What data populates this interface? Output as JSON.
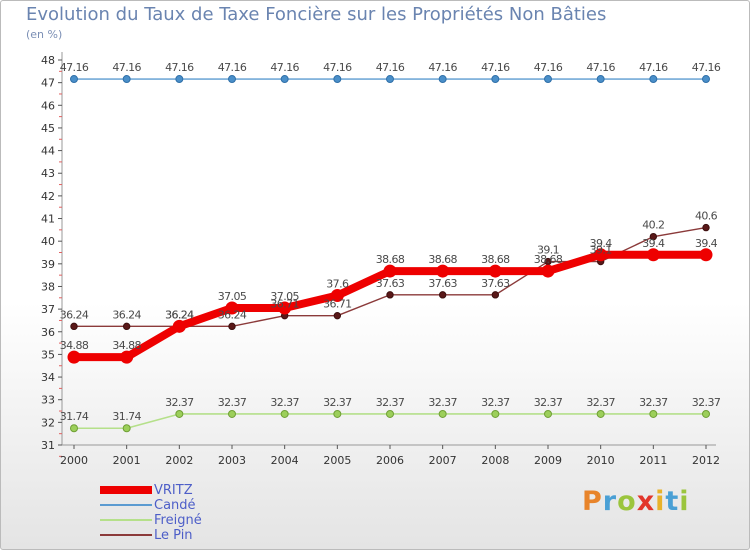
{
  "chart_data": {
    "type": "line",
    "title": "Evolution du Taux de Taxe Foncière sur les Propriétés Non Bâties",
    "subtitle": "(en %)",
    "xlabel": "",
    "ylabel": "",
    "ylim": [
      31,
      48
    ],
    "yticks": [
      31,
      32,
      33,
      34,
      35,
      36,
      37,
      38,
      39,
      40,
      41,
      42,
      43,
      44,
      45,
      46,
      47,
      48
    ],
    "grid": false,
    "x": [
      "2000",
      "2001",
      "2002",
      "2003",
      "2004",
      "2005",
      "2006",
      "2007",
      "2008",
      "2009",
      "2010",
      "2011",
      "2012"
    ],
    "series": [
      {
        "name": "VRITZ",
        "color": "#ee0000",
        "values": [
          34.88,
          34.88,
          36.24,
          37.05,
          37.05,
          37.6,
          38.68,
          38.68,
          38.68,
          38.68,
          39.4,
          39.4,
          39.4
        ],
        "labels": [
          "34.88",
          "34.88",
          "36.24",
          "37.05",
          "37.05",
          "37.6",
          "38.68",
          "38.68",
          "38.68",
          "38.68",
          "39.4",
          "39.4",
          "39.4"
        ]
      },
      {
        "name": "Candé",
        "color": "#5b9bd1",
        "values": [
          47.16,
          47.16,
          47.16,
          47.16,
          47.16,
          47.16,
          47.16,
          47.16,
          47.16,
          47.16,
          47.16,
          47.16,
          47.16
        ],
        "labels": [
          "47.16",
          "47.16",
          "47.16",
          "47.16",
          "47.16",
          "47.16",
          "47.16",
          "47.16",
          "47.16",
          "47.16",
          "47.16",
          "47.16",
          "47.16"
        ]
      },
      {
        "name": "Freigné",
        "color": "#a6d96a",
        "values": [
          31.74,
          31.74,
          32.37,
          32.37,
          32.37,
          32.37,
          32.37,
          32.37,
          32.37,
          32.37,
          32.37,
          32.37,
          32.37
        ],
        "labels": [
          "31.74",
          "31.74",
          "32.37",
          "32.37",
          "32.37",
          "32.37",
          "32.37",
          "32.37",
          "32.37",
          "32.37",
          "32.37",
          "32.37",
          "32.37"
        ]
      },
      {
        "name": "Le Pin",
        "color": "#8b3a3a",
        "values": [
          36.24,
          36.24,
          36.24,
          36.24,
          36.71,
          36.71,
          37.63,
          37.63,
          37.63,
          39.1,
          39.1,
          40.2,
          40.6
        ],
        "labels": [
          "36.24",
          "36.24",
          "36.24",
          "36.24",
          "36.71",
          "36.71",
          "37.63",
          "37.63",
          "37.63",
          "39.1",
          "39.1",
          "40.2",
          "40.6"
        ]
      }
    ]
  },
  "brand": {
    "p": "P",
    "r": "r",
    "o": "o",
    "x": "x",
    "i1": "i",
    "t": "t",
    "i2": "i"
  }
}
